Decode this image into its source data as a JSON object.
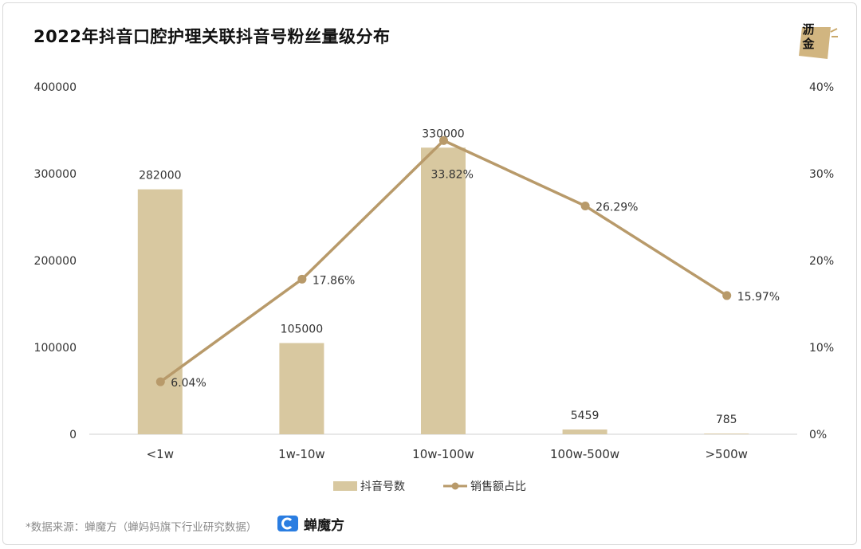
{
  "header": {
    "title": "2022年抖音口腔护理关联抖音号粉丝量级分布"
  },
  "logo": {
    "text": "沥金"
  },
  "footer": {
    "source": "*数据来源：蝉魔方（蝉妈妈旗下行业研究数据）",
    "brand": "蝉魔方"
  },
  "colors": {
    "bar": "#d8c8a0",
    "line": "#b89a6a",
    "axis_text": "#333333",
    "axis_line": "#d0d0d0"
  },
  "chart_data": {
    "type": "bar",
    "title": "2022年抖音口腔护理关联抖音号粉丝量级分布",
    "categories": [
      "<1w",
      "1w-10w",
      "10w-100w",
      "100w-500w",
      ">500w"
    ],
    "series": [
      {
        "name": "抖音号数",
        "type": "bar",
        "axis": "left",
        "values": [
          282000,
          105000,
          330000,
          5459,
          785
        ],
        "labels": [
          "282000",
          "105000",
          "330000",
          "5459",
          "785"
        ]
      },
      {
        "name": "销售额占比",
        "type": "line",
        "axis": "right",
        "values": [
          6.04,
          17.86,
          33.82,
          26.29,
          15.97
        ],
        "labels": [
          "6.04%",
          "17.86%",
          "33.82%",
          "26.29%",
          "15.97%"
        ]
      }
    ],
    "y_left": {
      "min": 0,
      "max": 400000,
      "ticks": [
        "0",
        "100000",
        "200000",
        "300000",
        "400000"
      ]
    },
    "y_right": {
      "min": 0,
      "max": 40,
      "ticks": [
        "0%",
        "10%",
        "20%",
        "30%",
        "40%"
      ]
    },
    "legend": [
      "抖音号数",
      "销售额占比"
    ],
    "legend_position": "bottom",
    "grid": false
  }
}
